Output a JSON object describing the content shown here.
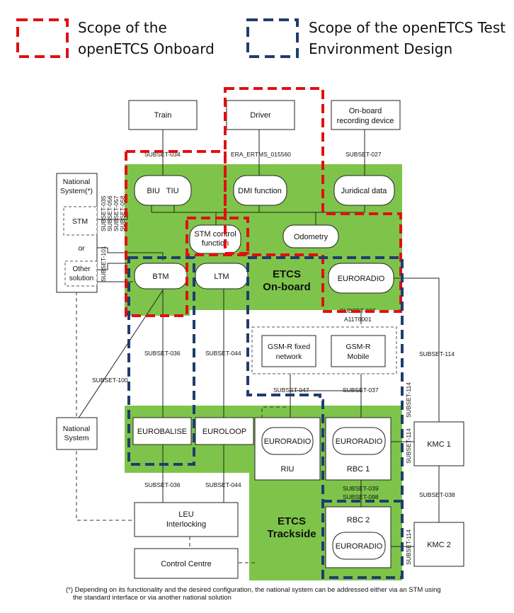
{
  "legend": {
    "onboard_line1": "Scope of the",
    "onboard_line2": "openETCS Onboard",
    "test_line1": "Scope of the openETCS Test",
    "test_line2": "Environment Design",
    "colors": {
      "onboard_scope": "#e01010",
      "test_scope": "#1f3d6e"
    }
  },
  "colors": {
    "zone_green": "#7ec44a",
    "line": "#222222"
  },
  "boxes": {
    "train": "Train",
    "driver": "Driver",
    "recorder_line1": "On-board",
    "recorder_line2": "recording device",
    "national_system_top_line1": "National",
    "national_system_top_line2": "System(*)",
    "stm": "STM",
    "or": "or",
    "other_solution_line1": "Other",
    "other_solution_line2": "solution",
    "biu_tiu": "BIU   TIU",
    "dmi_function": "DMI function",
    "juridical_data": "Juridical data",
    "stm_control_line1": "STM control",
    "stm_control_line2": "function",
    "odometry": "Odometry",
    "btm": "BTM",
    "ltm": "LTM",
    "euroradio_onboard": "EURORADIO",
    "gsmr_fixed_line1": "GSM-R fixed",
    "gsmr_fixed_line2": "network",
    "gsmr_mobile_line1": "GSM-R",
    "gsmr_mobile_line2": "Mobile",
    "national_system_bottom_line1": "National",
    "national_system_bottom_line2": "System",
    "eurobalise": "EUROBALISE",
    "euroloop": "EUROLOOP",
    "riu_euroradio": "EURORADIO",
    "riu": "RIU",
    "rbc1_euroradio": "EURORADIO",
    "rbc1": "RBC 1",
    "rbc2": "RBC 2",
    "rbc2_euroradio": "EURORADIO",
    "kmc1": "KMC 1",
    "kmc2": "KMC 2",
    "leu_line1": "LEU",
    "leu_line2": "Interlocking",
    "control_centre": "Control Centre"
  },
  "zones": {
    "onboard_line1": "ETCS",
    "onboard_line2": "On-board",
    "trackside_line1": "ETCS",
    "trackside_line2": "Trackside"
  },
  "interfaces": {
    "subset_034": "SUBSET-034",
    "era_ertms": "ERA_ERTMS_015560",
    "subset_027": "SUBSET-027",
    "subset_035": "SUBSET-035",
    "subset_056": "SUBSET-056",
    "subset_057": "SUBSET-057",
    "subset_058": "SUBSET-058",
    "subset_101": "SUBSET-101",
    "subset_037_onboard": "SUBSET-037",
    "a11t6001": "A11T6001",
    "subset_036_top": "SUBSET-036",
    "subset_044_top": "SUBSET-044",
    "subset_100": "SUBSET-100",
    "subset_114_kmc_onboard": "SUBSET-114",
    "subset_047": "SUBSET-047",
    "subset_037_rbc": "SUBSET-037",
    "subset_114_vertical_a": "SUBSET-114",
    "subset_114_vertical_b": "SUBSET-114",
    "subset_036_bottom": "SUBSET-036",
    "subset_044_bottom": "SUBSET-044",
    "subset_039": "SUBSET-039",
    "subset_098": "SUBSET-098",
    "subset_038": "SUBSET-038",
    "subset_114_rbc2": "SUBSET-114"
  },
  "footnote_line1": "(*) Depending on its functionality and the desired configuration, the national system can be addressed either via an STM using",
  "footnote_line2": "the standard interface or via another national solution"
}
